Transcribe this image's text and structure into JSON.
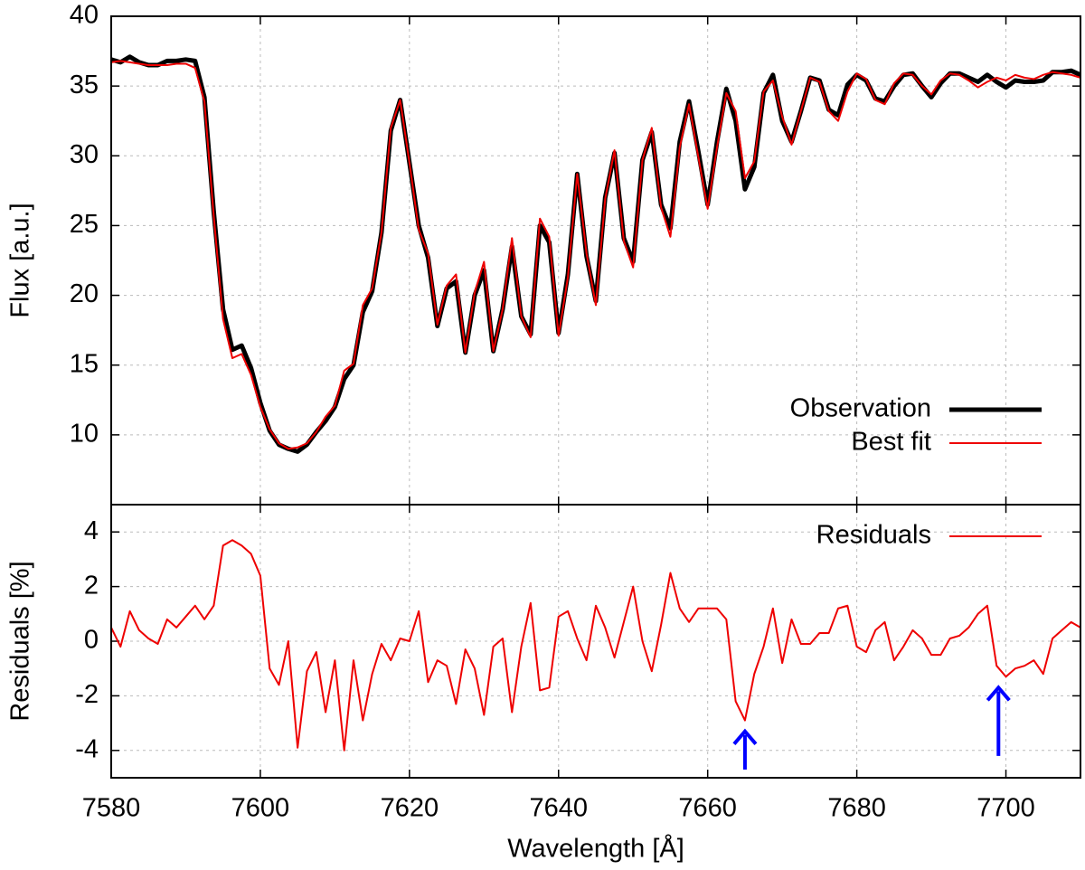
{
  "chart_data": [
    {
      "type": "line",
      "ylabel": "Flux [a.u.]",
      "xlim": [
        7580,
        7710
      ],
      "xticks": [
        7580,
        7600,
        7620,
        7640,
        7660,
        7680,
        7700
      ],
      "ylim": [
        5,
        40
      ],
      "yticks": [
        10,
        15,
        20,
        25,
        30,
        35,
        40
      ],
      "grid": true,
      "legend": "lower right",
      "x": [
        7580,
        7581.25,
        7582.5,
        7583.75,
        7585,
        7586.25,
        7587.5,
        7588.75,
        7590,
        7591.25,
        7592.5,
        7593.75,
        7595,
        7596.25,
        7597.5,
        7598.75,
        7600,
        7601.25,
        7602.5,
        7603.75,
        7605,
        7606.25,
        7607.5,
        7608.75,
        7610,
        7611.25,
        7612.5,
        7613.75,
        7615,
        7616.25,
        7617.5,
        7618.75,
        7620,
        7621.25,
        7622.5,
        7623.75,
        7625,
        7626.25,
        7627.5,
        7628.75,
        7630,
        7631.25,
        7632.5,
        7633.75,
        7635,
        7636.25,
        7637.5,
        7638.75,
        7640,
        7641.25,
        7642.5,
        7643.75,
        7645,
        7646.25,
        7647.5,
        7648.75,
        7650,
        7651.25,
        7652.5,
        7653.75,
        7655,
        7656.25,
        7657.5,
        7658.75,
        7660,
        7661.25,
        7662.5,
        7663.75,
        7665,
        7666.25,
        7667.5,
        7668.75,
        7670,
        7671.25,
        7672.5,
        7673.75,
        7675,
        7676.25,
        7677.5,
        7678.75,
        7680,
        7681.25,
        7682.5,
        7683.75,
        7685,
        7686.25,
        7687.5,
        7688.75,
        7690,
        7691.25,
        7692.5,
        7693.75,
        7695,
        7696.25,
        7697.5,
        7698.75,
        7700,
        7701.25,
        7702.5,
        7703.75,
        7705,
        7706.25,
        7707.5,
        7708.75,
        7710
      ],
      "series": [
        {
          "name": "Observation",
          "color": "#000000",
          "width": 5,
          "values": [
            36.9,
            36.7,
            37.1,
            36.7,
            36.5,
            36.5,
            36.8,
            36.8,
            36.9,
            36.8,
            34.2,
            26,
            19,
            16.1,
            16.4,
            14.8,
            12.3,
            10.3,
            9.3,
            9.0,
            8.8,
            9.3,
            10.2,
            11.0,
            12.0,
            14.0,
            15.0,
            18.8,
            20.3,
            24.5,
            31.8,
            34.0,
            29.5,
            25,
            22.7,
            17.8,
            20.5,
            21.0,
            15.9,
            20,
            21.8,
            16,
            19,
            23.5,
            18.5,
            17.2,
            25,
            23.8,
            17.3,
            21.5,
            28.7,
            22.8,
            19.6,
            27,
            30.2,
            24.1,
            22.4,
            29.7,
            31.7,
            26.5,
            24.8,
            31,
            33.9,
            30.3,
            26.5,
            31,
            34.8,
            32.5,
            27.6,
            29.2,
            34.5,
            35.8,
            32.5,
            31,
            33.2,
            35.6,
            35.4,
            33.3,
            32.9,
            35.1,
            35.8,
            35.4,
            34.1,
            33.9,
            35,
            35.8,
            35.9,
            35,
            34.2,
            35.2,
            35.9,
            35.9,
            35.6,
            35.3,
            35.8,
            35.3,
            34.9,
            35.4,
            35.3,
            35.3,
            35.4,
            36,
            36,
            36.1,
            35.8
          ]
        },
        {
          "name": "Best fit",
          "color": "#ee0000",
          "width": 2,
          "values": [
            36.7,
            36.8,
            36.7,
            36.6,
            36.5,
            36.5,
            36.5,
            36.6,
            36.6,
            36.3,
            33.9,
            25.7,
            18.3,
            15.5,
            15.8,
            14.3,
            12.0,
            10.4,
            9.4,
            9.0,
            9.1,
            9.4,
            10.2,
            11.3,
            12.1,
            14.6,
            15.1,
            19.3,
            20.5,
            24.5,
            32.0,
            34.0,
            29.5,
            24.7,
            23.0,
            17.9,
            20.7,
            21.5,
            15.9,
            20.2,
            22.4,
            16.0,
            19.0,
            24.1,
            18.5,
            17.0,
            25.5,
            24.2,
            17.1,
            21.3,
            28.7,
            23.0,
            19.3,
            26.9,
            30.4,
            23.9,
            22.0,
            29.7,
            32.0,
            26.3,
            24.2,
            30.6,
            33.7,
            29.9,
            26.2,
            30.6,
            34.5,
            33.2,
            28.4,
            29.6,
            34.6,
            35.4,
            32.8,
            30.8,
            33.2,
            35.6,
            35.3,
            33.2,
            32.5,
            34.6,
            35.9,
            35.5,
            34.0,
            33.7,
            35.2,
            35.9,
            35.8,
            35.0,
            34.4,
            35.4,
            35.9,
            35.8,
            35.4,
            34.9,
            35.3,
            35.6,
            35.4,
            35.8,
            35.6,
            35.5,
            35.8,
            36.0,
            35.9,
            35.8,
            35.6
          ]
        }
      ]
    },
    {
      "type": "line",
      "ylabel": "Residuals [%]",
      "xlabel": "Wavelength [Å]",
      "xlim": [
        7580,
        7710
      ],
      "xticks": [
        7580,
        7600,
        7620,
        7640,
        7660,
        7680,
        7700
      ],
      "ylim": [
        -5,
        5
      ],
      "yticks": [
        -4,
        -2,
        0,
        2,
        4
      ],
      "grid": true,
      "legend": "upper right",
      "x": [
        7580,
        7581.25,
        7582.5,
        7583.75,
        7585,
        7586.25,
        7587.5,
        7588.75,
        7590,
        7591.25,
        7592.5,
        7593.75,
        7595,
        7596.25,
        7597.5,
        7598.75,
        7600,
        7601.25,
        7602.5,
        7603.75,
        7605,
        7606.25,
        7607.5,
        7608.75,
        7610,
        7611.25,
        7612.5,
        7613.75,
        7615,
        7616.25,
        7617.5,
        7618.75,
        7620,
        7621.25,
        7622.5,
        7623.75,
        7625,
        7626.25,
        7627.5,
        7628.75,
        7630,
        7631.25,
        7632.5,
        7633.75,
        7635,
        7636.25,
        7637.5,
        7638.75,
        7640,
        7641.25,
        7642.5,
        7643.75,
        7645,
        7646.25,
        7647.5,
        7648.75,
        7650,
        7651.25,
        7652.5,
        7653.75,
        7655,
        7656.25,
        7657.5,
        7658.75,
        7660,
        7661.25,
        7662.5,
        7663.75,
        7665,
        7666.25,
        7667.5,
        7668.75,
        7670,
        7671.25,
        7672.5,
        7673.75,
        7675,
        7676.25,
        7677.5,
        7678.75,
        7680,
        7681.25,
        7682.5,
        7683.75,
        7685,
        7686.25,
        7687.5,
        7688.75,
        7690,
        7691.25,
        7692.5,
        7693.75,
        7695,
        7696.25,
        7697.5,
        7698.75,
        7700,
        7701.25,
        7702.5,
        7703.75,
        7705,
        7706.25,
        7707.5,
        7708.75,
        7710
      ],
      "series": [
        {
          "name": "Residuals",
          "color": "#ee0000",
          "width": 2,
          "values": [
            0.5,
            -0.2,
            1.1,
            0.4,
            0.1,
            -0.1,
            0.8,
            0.5,
            0.9,
            1.3,
            0.8,
            1.3,
            3.5,
            3.7,
            3.5,
            3.2,
            2.4,
            -1,
            -1.6,
            0,
            -3.9,
            -1.1,
            -0.4,
            -2.6,
            -0.7,
            -4,
            -0.7,
            -2.9,
            -1.2,
            -0.1,
            -0.7,
            0.1,
            0,
            1.1,
            -1.5,
            -0.7,
            -0.9,
            -2.3,
            -0.3,
            -1,
            -2.7,
            -0.2,
            0.1,
            -2.6,
            -0.2,
            1.4,
            -1.8,
            -1.7,
            0.9,
            1.1,
            0.1,
            -0.7,
            1.3,
            0.5,
            -0.6,
            0.7,
            2,
            0,
            -1.1,
            0.6,
            2.5,
            1.2,
            0.7,
            1.2,
            1.2,
            1.2,
            0.8,
            -2.2,
            -2.9,
            -1.2,
            -0.2,
            1.2,
            -0.8,
            0.8,
            -0.1,
            -0.1,
            0.3,
            0.3,
            1.2,
            1.3,
            -0.2,
            -0.4,
            0.4,
            0.7,
            -0.7,
            -0.2,
            0.4,
            0.1,
            -0.5,
            -0.5,
            0.1,
            0.2,
            0.5,
            1,
            1.3,
            -0.9,
            -1.3,
            -1,
            -0.9,
            -0.7,
            -1.2,
            0.1,
            0.4,
            0.7,
            0.5
          ]
        }
      ],
      "arrows": [
        {
          "x": 7665,
          "y_from": -4.7,
          "y_to": -3.3,
          "color": "#0000ff"
        },
        {
          "x": 7699,
          "y_from": -4.2,
          "y_to": -1.7,
          "color": "#0000ff"
        }
      ]
    }
  ]
}
